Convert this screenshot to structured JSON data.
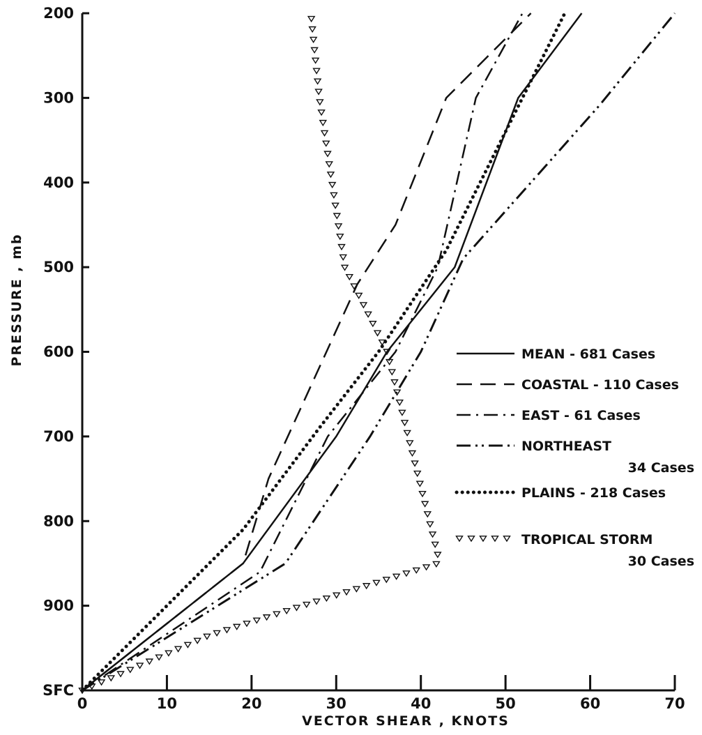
{
  "chart_data": {
    "type": "line",
    "xlabel": "VECTOR SHEAR , KNOTS",
    "ylabel": "PRESSURE , mb",
    "xlim": [
      0,
      70
    ],
    "ylim": [
      1000,
      200
    ],
    "x_ticks": [
      "0",
      "10",
      "20",
      "30",
      "40",
      "50",
      "60",
      "70"
    ],
    "y_ticks": [
      "SFC",
      "900",
      "800",
      "700",
      "600",
      "500",
      "400",
      "300",
      "200"
    ],
    "y_tick_values": [
      1000,
      900,
      800,
      700,
      600,
      500,
      400,
      300,
      200
    ],
    "legend_position": "right",
    "series": [
      {
        "name": "MEAN - 681 Cases",
        "line_style": "solid",
        "points": [
          [
            0,
            1000
          ],
          [
            19,
            850
          ],
          [
            30,
            700
          ],
          [
            36,
            600
          ],
          [
            44,
            500
          ],
          [
            51.5,
            300
          ],
          [
            59,
            200
          ]
        ]
      },
      {
        "name": "COASTAL - 110 Cases",
        "line_style": "dashed",
        "points": [
          [
            0,
            1000
          ],
          [
            19,
            850
          ],
          [
            22,
            750
          ],
          [
            32.5,
            520
          ],
          [
            37,
            450
          ],
          [
            43,
            300
          ],
          [
            53,
            200
          ]
        ]
      },
      {
        "name": "EAST - 61 Cases",
        "line_style": "dashdot",
        "points": [
          [
            0,
            1000
          ],
          [
            21,
            860
          ],
          [
            29,
            700
          ],
          [
            37,
            600
          ],
          [
            42,
            500
          ],
          [
            46.5,
            300
          ],
          [
            52,
            200
          ]
        ]
      },
      {
        "name": "NORTHEAST",
        "name_line2": "34 Cases",
        "line_style": "dashdotdot",
        "points": [
          [
            0,
            1000
          ],
          [
            24,
            850
          ],
          [
            34,
            700
          ],
          [
            40,
            600
          ],
          [
            45,
            490
          ],
          [
            61,
            310
          ],
          [
            70,
            200
          ]
        ]
      },
      {
        "name": "PLAINS - 218 Cases",
        "line_style": "dotted",
        "points": [
          [
            0,
            1000
          ],
          [
            19,
            810
          ],
          [
            28,
            690
          ],
          [
            35,
            600
          ],
          [
            43,
            480
          ],
          [
            52,
            300
          ],
          [
            57,
            200
          ]
        ]
      },
      {
        "name": "TROPICAL STORM",
        "name_line2": "30 Cases",
        "line_style": "triangles",
        "points": [
          [
            0,
            1000
          ],
          [
            15,
            935
          ],
          [
            26,
            900
          ],
          [
            42,
            850
          ],
          [
            42,
            840
          ],
          [
            36,
            600
          ],
          [
            31,
            500
          ],
          [
            28,
            300
          ],
          [
            27,
            200
          ]
        ]
      }
    ]
  }
}
